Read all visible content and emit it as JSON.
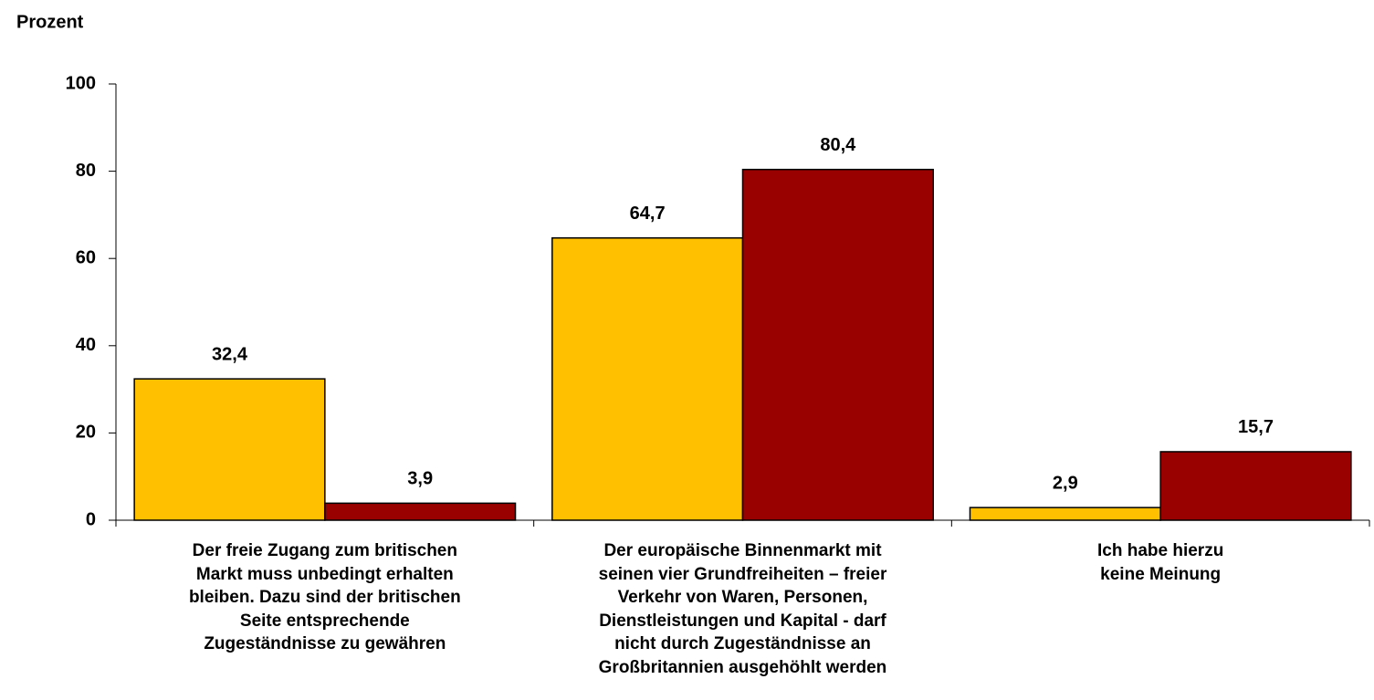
{
  "chart_data": {
    "type": "bar",
    "y_label": "Prozent",
    "categories": [
      "Der freie Zugang zum britischen\nMarkt muss unbedingt erhalten\nbleiben. Dazu sind der britischen\nSeite entsprechende\nZugeständnisse zu gewähren",
      "Der europäische Binnenmarkt mit\nseinen vier Grundfreiheiten – freier\nVerkehr von Waren, Personen,\nDienstleistungen und Kapital - darf\nnicht durch Zugeständnisse an\nGroßbritannien ausgehöhlt werden",
      "Ich habe hierzu\nkeine Meinung"
    ],
    "series": [
      {
        "color": "#FFC000",
        "values": [
          32.4,
          64.7,
          2.9
        ],
        "value_labels": [
          "32,4",
          "64,7",
          "2,9"
        ]
      },
      {
        "color": "#990000",
        "values": [
          3.9,
          80.4,
          15.7
        ],
        "value_labels": [
          "3,9",
          "80,4",
          "15,7"
        ]
      }
    ],
    "ylim": [
      0,
      100
    ],
    "yticks": [
      0,
      20,
      40,
      60,
      80,
      100
    ]
  }
}
